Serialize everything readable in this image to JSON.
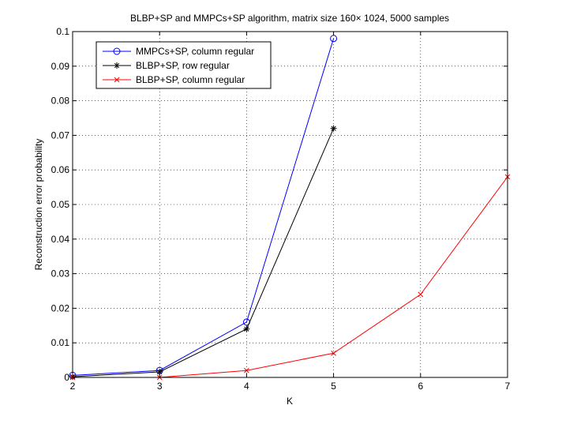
{
  "chart_data": {
    "type": "line",
    "title": "BLBP+SP and MMPCs+SP algorithm, matrix size 160× 1024, 5000 samples",
    "xlabel": "K",
    "ylabel": "Reconstruction error probability",
    "xlim": [
      2,
      7
    ],
    "ylim": [
      0,
      0.1
    ],
    "xticks": [
      "2",
      "3",
      "4",
      "5",
      "6",
      "7"
    ],
    "yticks": [
      "0",
      "0.01",
      "0.02",
      "0.03",
      "0.04",
      "0.05",
      "0.06",
      "0.07",
      "0.08",
      "0.09",
      "0.1"
    ],
    "grid": true,
    "legend_position": "top-left",
    "series": [
      {
        "name": "MMPCs+SP, column regular",
        "color": "#0000ff",
        "marker": "circle",
        "x": [
          2,
          3,
          4,
          5
        ],
        "y": [
          0.0006,
          0.002,
          0.016,
          0.098
        ]
      },
      {
        "name": "BLBP+SP, row regular",
        "color": "#000000",
        "marker": "asterisk",
        "x": [
          2,
          3,
          4,
          5
        ],
        "y": [
          0.0002,
          0.0016,
          0.014,
          0.072
        ]
      },
      {
        "name": "BLBP+SP, column regular",
        "color": "#ff0000",
        "marker": "x",
        "x": [
          2,
          3,
          4,
          5,
          6,
          7
        ],
        "y": [
          0.0,
          0.0,
          0.002,
          0.007,
          0.024,
          0.058
        ]
      }
    ]
  }
}
